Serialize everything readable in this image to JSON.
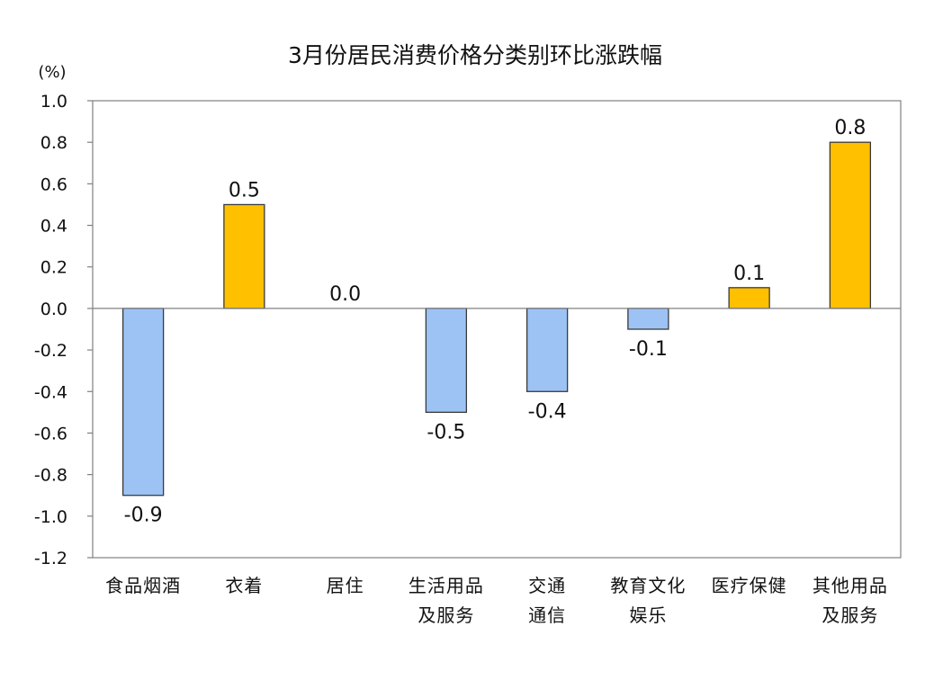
{
  "chart_data": {
    "type": "bar",
    "title": "3月份居民消费价格分类别环比涨跌幅",
    "unit_label": "(%)",
    "xlabel": "",
    "ylabel": "",
    "ylim": [
      -1.2,
      1.0
    ],
    "y_ticks": [
      "1.0",
      "0.8",
      "0.6",
      "0.4",
      "0.2",
      "0.0",
      "-0.2",
      "-0.4",
      "-0.6",
      "-0.8",
      "-1.0",
      "-1.2"
    ],
    "grid": false,
    "legend": "none",
    "categories": [
      [
        "食品烟酒"
      ],
      [
        "衣着"
      ],
      [
        "居住"
      ],
      [
        "生活用品",
        "及服务"
      ],
      [
        "交通",
        "通信"
      ],
      [
        "教育文化",
        "娱乐"
      ],
      [
        "医疗保健"
      ],
      [
        "其他用品",
        "及服务"
      ]
    ],
    "values": [
      -0.9,
      0.5,
      0.0,
      -0.5,
      -0.4,
      -0.1,
      0.1,
      0.8
    ],
    "value_labels": [
      "-0.9",
      "0.5",
      "0.0",
      "-0.5",
      "-0.4",
      "-0.1",
      "0.1",
      "0.8"
    ],
    "colors": {
      "positive_fill": "#FFC000",
      "positive_stroke": "#3A3A3A",
      "negative_fill": "#9DC3F5",
      "negative_stroke": "#3A3A3A",
      "axis": "#808080"
    }
  }
}
